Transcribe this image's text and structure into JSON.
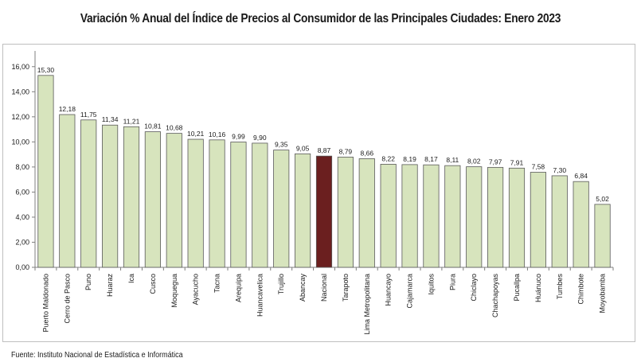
{
  "chart_data": {
    "type": "bar",
    "title": "Variación % Anual del Índice de Precios al Consumidor de las Principales Ciudades: Enero 2023",
    "source": "Fuente: Instituto Nacional de Estadística e Informática",
    "categories": [
      "Puerto Maldonado",
      "Cerro de Pasco",
      "Puno",
      "Huaraz",
      "Ica",
      "Cusco",
      "Moquegua",
      "Ayacucho",
      "Tacna",
      "Arequipa",
      "Huancavelica",
      "Trujillo",
      "Abancay",
      "Nacional",
      "Tarapoto",
      "Lima Metropolitana",
      "Huancayo",
      "Cajamarca",
      "Iquitos",
      "Piura",
      "Chiclayo",
      "Chachapoyas",
      "Pucallpa",
      "Huánuco",
      "Tumbes",
      "Chimbote",
      "Moyobamba"
    ],
    "values": [
      15.3,
      12.18,
      11.75,
      11.34,
      11.21,
      10.81,
      10.68,
      10.21,
      10.16,
      9.99,
      9.9,
      9.35,
      9.05,
      8.87,
      8.79,
      8.66,
      8.22,
      8.19,
      8.17,
      8.11,
      8.02,
      7.97,
      7.91,
      7.58,
      7.3,
      6.84,
      5.02
    ],
    "value_labels": [
      "15,30",
      "12,18",
      "11,75",
      "11,34",
      "11,21",
      "10,81",
      "10,68",
      "10,21",
      "10,16",
      "9,99",
      "9,90",
      "9,35",
      "9,05",
      "8,87",
      "8,79",
      "8,66",
      "8,22",
      "8,19",
      "8,17",
      "8,11",
      "8,02",
      "7,97",
      "7,91",
      "7,58",
      "7,30",
      "6,84",
      "5,02"
    ],
    "ylim": [
      0,
      17
    ],
    "yticks": [
      0,
      2,
      4,
      6,
      8,
      10,
      12,
      14,
      16
    ],
    "ytick_labels": [
      "0,00",
      "2,00",
      "4,00",
      "6,00",
      "8,00",
      "10,00",
      "12,00",
      "14,00",
      "16,00"
    ],
    "highlight_category": "Nacional",
    "bar_color": "#d7e4bd",
    "highlight_color": "#6b1f1f",
    "bar_border_color": "#595959",
    "grid": false,
    "legend": "none"
  }
}
